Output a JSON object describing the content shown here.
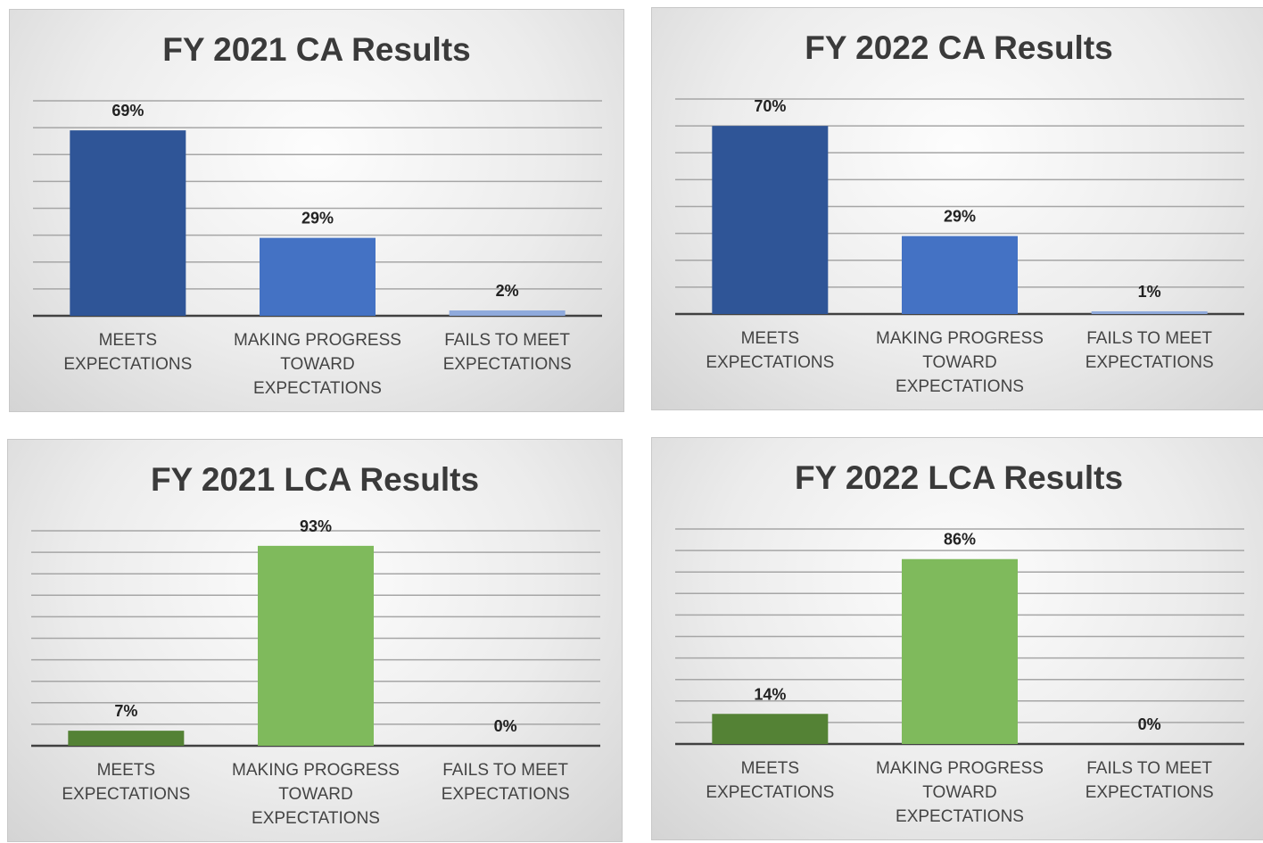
{
  "chart_data": [
    {
      "type": "bar",
      "title": "FY 2021 CA Results",
      "categories": [
        "MEETS EXPECTATIONS",
        "MAKING PROGRESS TOWARD EXPECTATIONS",
        "FAILS TO MEET EXPECTATIONS"
      ],
      "values": [
        69,
        29,
        2
      ],
      "value_labels": [
        "69%",
        "29%",
        "2%"
      ],
      "colors": [
        "#2f5597",
        "#4472c4",
        "#8faadc"
      ],
      "ylim": [
        0,
        80
      ],
      "yticks": [
        0,
        10,
        20,
        30,
        40,
        50,
        60,
        70,
        80
      ],
      "grid": true
    },
    {
      "type": "bar",
      "title": "FY 2022 CA Results",
      "categories": [
        "MEETS EXPECTATIONS",
        "MAKING PROGRESS TOWARD EXPECTATIONS",
        "FAILS TO MEET EXPECTATIONS"
      ],
      "values": [
        70,
        29,
        1
      ],
      "value_labels": [
        "70%",
        "29%",
        "1%"
      ],
      "colors": [
        "#2f5597",
        "#4472c4",
        "#8faadc"
      ],
      "ylim": [
        0,
        80
      ],
      "yticks": [
        0,
        10,
        20,
        30,
        40,
        50,
        60,
        70,
        80
      ],
      "grid": true
    },
    {
      "type": "bar",
      "title": "FY 2021 LCA Results",
      "categories": [
        "MEETS EXPECTATIONS",
        "MAKING PROGRESS TOWARD EXPECTATIONS",
        "FAILS TO MEET EXPECTATIONS"
      ],
      "values": [
        7,
        93,
        0
      ],
      "value_labels": [
        "7%",
        "93%",
        "0%"
      ],
      "colors": [
        "#548235",
        "#7fba5c",
        "#a9d18e"
      ],
      "ylim": [
        0,
        100
      ],
      "yticks": [
        0,
        10,
        20,
        30,
        40,
        50,
        60,
        70,
        80,
        90,
        100
      ],
      "grid": true
    },
    {
      "type": "bar",
      "title": "FY 2022 LCA Results",
      "categories": [
        "MEETS EXPECTATIONS",
        "MAKING PROGRESS TOWARD EXPECTATIONS",
        "FAILS TO MEET EXPECTATIONS"
      ],
      "values": [
        14,
        86,
        0
      ],
      "value_labels": [
        "14%",
        "86%",
        "0%"
      ],
      "colors": [
        "#548235",
        "#7fba5c",
        "#a9d18e"
      ],
      "ylim": [
        0,
        100
      ],
      "yticks": [
        0,
        10,
        20,
        30,
        40,
        50,
        60,
        70,
        80,
        90,
        100
      ],
      "grid": true
    }
  ]
}
